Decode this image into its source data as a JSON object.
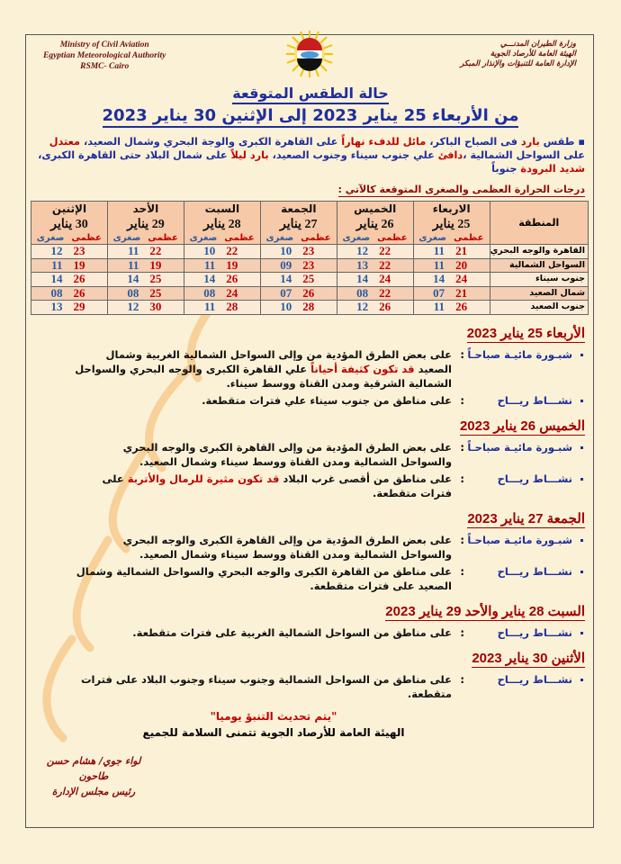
{
  "header": {
    "en_lines": [
      "Ministry of Civil Aviation",
      "Egyptian Meteorological Authority",
      "RSMC- Cairo"
    ],
    "ar_lines": [
      "وزارة الطيران المدنـــي",
      "الهيئة العامة للأرصاد الجوية",
      "الإدارة العامة للتنبؤات والإنذار المبكر"
    ],
    "logo_text": "EMA"
  },
  "title": "حالة الطقس المتوقعة",
  "subtitle": "من الأربعاء 25 يناير 2023  إلى الإثنين 30 يناير 2023",
  "intro": [
    {
      "text": "طقس ",
      "color": "blue"
    },
    {
      "text": "بارد",
      "color": "red"
    },
    {
      "text": " فى الصباح الباكر، ",
      "color": "blue"
    },
    {
      "text": "مائل للدفء نهاراً",
      "color": "red"
    },
    {
      "text": " على القاهرة الكبرى والوجة البحري وشمال الصعيد، ",
      "color": "blue"
    },
    {
      "text": "معتدل",
      "color": "red"
    },
    {
      "text": " على السواحل الشمالية ،",
      "color": "blue"
    },
    {
      "text": "دافئ",
      "color": "red"
    },
    {
      "text": " علي جنوب سيناء وجنوب الصعيد، ",
      "color": "blue"
    },
    {
      "text": "بارد ليلاً",
      "color": "red"
    },
    {
      "text": " على شمال البلاد حتى القاهرة الكبرى، ",
      "color": "blue"
    },
    {
      "text": "شديد البرودة",
      "color": "red"
    },
    {
      "text": " جنوباً",
      "color": "blue"
    }
  ],
  "temps_caption": "درجات الحرارة العظمى والصغرى المتوقعة كالآتي :",
  "table": {
    "region_header": "المنطقة",
    "max_label": "عظمى",
    "min_label": "صغرى",
    "days": [
      {
        "day": "الاربعاء",
        "date": "25 يناير"
      },
      {
        "day": "الخميس",
        "date": "26 يناير"
      },
      {
        "day": "الجمعة",
        "date": "27 يناير"
      },
      {
        "day": "السبت",
        "date": "28 يناير"
      },
      {
        "day": "الأحد",
        "date": "29 يناير"
      },
      {
        "day": "الإثنين",
        "date": "30 يناير"
      }
    ],
    "rows": [
      {
        "region": "القاهرة والوجه البحري",
        "values": [
          [
            "21",
            "11"
          ],
          [
            "22",
            "12"
          ],
          [
            "23",
            "10"
          ],
          [
            "22",
            "10"
          ],
          [
            "22",
            "11"
          ],
          [
            "23",
            "12"
          ]
        ]
      },
      {
        "region": "السواحل الشمالية",
        "values": [
          [
            "20",
            "11"
          ],
          [
            "22",
            "13"
          ],
          [
            "23",
            "09"
          ],
          [
            "19",
            "11"
          ],
          [
            "19",
            "11"
          ],
          [
            "19",
            "11"
          ]
        ]
      },
      {
        "region": "جنوب سيناء",
        "values": [
          [
            "24",
            "14"
          ],
          [
            "24",
            "14"
          ],
          [
            "25",
            "14"
          ],
          [
            "26",
            "14"
          ],
          [
            "25",
            "14"
          ],
          [
            "26",
            "14"
          ]
        ]
      },
      {
        "region": "شمال الصعيد",
        "values": [
          [
            "21",
            "07"
          ],
          [
            "22",
            "08"
          ],
          [
            "26",
            "07"
          ],
          [
            "24",
            "08"
          ],
          [
            "25",
            "08"
          ],
          [
            "26",
            "08"
          ]
        ]
      },
      {
        "region": "جنوب الصعيد",
        "values": [
          [
            "26",
            "11"
          ],
          [
            "26",
            "12"
          ],
          [
            "28",
            "10"
          ],
          [
            "28",
            "11"
          ],
          [
            "30",
            "12"
          ],
          [
            "29",
            "13"
          ]
        ]
      }
    ]
  },
  "forecast": [
    {
      "heading": "الأربعاء 25 يناير 2023",
      "items": [
        {
          "label": "شبـورة مائيـة صباحـاً",
          "segments": [
            {
              "text": "على بعض الطرق المؤدية من وإلى السواحل الشمالية الغربية وشمال الصعيد ",
              "color": "black"
            },
            {
              "text": "قد تكون كثيفة أحياناً",
              "color": "red"
            },
            {
              "text": " علي القاهرة الكبرى والوجه البحري والسواحل الشمالية الشرقية ومدن القناة ووسط سيناء.",
              "color": "black"
            }
          ]
        },
        {
          "label": "نشـــاط ريـــاح",
          "segments": [
            {
              "text": "على مناطق من جنوب سيناء علي فترات متقطعة.",
              "color": "black"
            }
          ]
        }
      ]
    },
    {
      "heading": "الخميس 26 يناير 2023",
      "items": [
        {
          "label": "شبـورة مائيـة صباحـاً",
          "segments": [
            {
              "text": "على بعض الطرق المؤدية من وإلى القاهرة الكبرى والوجه البحري والسواحل الشمالية ومدن القناة ووسط سيناء وشمال الصعيد.",
              "color": "black"
            }
          ]
        },
        {
          "label": "نشـــاط ريـــاح",
          "segments": [
            {
              "text": "على مناطق من أقصى غرب البلاد  ",
              "color": "black"
            },
            {
              "text": "قد تكون مثيرة للرمال والأتربة",
              "color": "red"
            },
            {
              "text": " على فترات متقطعة.",
              "color": "black"
            }
          ]
        }
      ]
    },
    {
      "heading": "الجمعة 27 يناير 2023",
      "items": [
        {
          "label": "شبـورة مائيـة صباحـاً",
          "segments": [
            {
              "text": "على بعض الطرق المؤدية من وإلى القاهرة الكبرى والوجه البحري والسواحل الشمالية ومدن القناة ووسط سيناء وشمال الصعيد.",
              "color": "black"
            }
          ]
        },
        {
          "label": "نشـــاط ريـــاح",
          "segments": [
            {
              "text": "على مناطق من القاهرة الكبرى والوجه البحري والسواحل الشمالية وشمال الصعيد على فترات متقطعة.",
              "color": "black"
            }
          ]
        }
      ]
    },
    {
      "heading": "السبت 28 يناير والأحد 29 يناير 2023",
      "items": [
        {
          "label": "نشـــاط ريـــاح",
          "segments": [
            {
              "text": "على مناطق من السواحل الشمالية الغربية على فترات متقطعة.",
              "color": "black"
            }
          ]
        }
      ]
    },
    {
      "heading": "الأثنين 30 يناير 2023",
      "items": [
        {
          "label": "نشـــاط ريـــاح",
          "segments": [
            {
              "text": "على مناطق من السواحل الشمالية وجنوب سيناء وجنوب البلاد على فترات متقطعة.",
              "color": "black"
            }
          ]
        }
      ]
    }
  ],
  "closing": {
    "update_note": "\"يتم تحديث التنبؤ يوميا\"",
    "wish": "الهيئة العامة للأرصاد الجوية تتمنى السلامة للجميع"
  },
  "signature": {
    "name": "لواء جوي/ هشام حسن طاحون",
    "title": "رئيس مجلس الإدارة"
  },
  "watermark": "الهيئة العامة للأرصاد الجوية",
  "colors": {
    "blue": "#1f2e9c",
    "red": "#c00000",
    "table_header": "#f6c9a8",
    "background": "#fbf1d6"
  }
}
